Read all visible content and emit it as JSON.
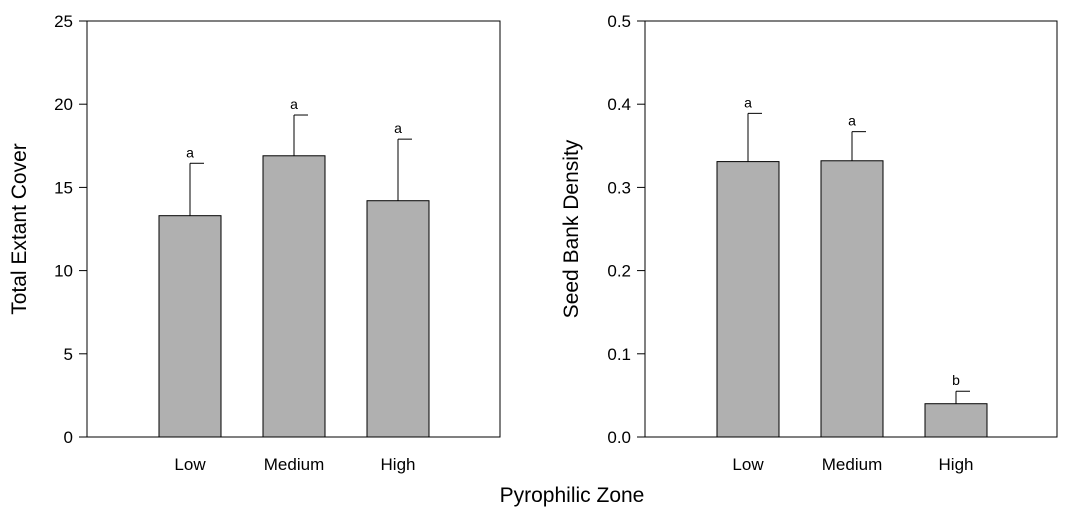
{
  "shared_xlabel": "Pyrophilic Zone",
  "chart_data": [
    {
      "type": "bar",
      "categories": [
        "Low",
        "Medium",
        "High"
      ],
      "values": [
        13.3,
        16.9,
        14.2
      ],
      "errors": [
        3.15,
        2.45,
        3.7
      ],
      "significance": [
        "a",
        "a",
        "a"
      ],
      "xlabel": "",
      "ylabel": "Total Extant Cover",
      "ylim": [
        0,
        25
      ],
      "yticks": [
        0,
        5,
        10,
        15,
        20,
        25
      ],
      "yticklabels": [
        "0",
        "5",
        "10",
        "15",
        "20",
        "25"
      ],
      "bar_color": "#b0b0b0",
      "grid": false
    },
    {
      "type": "bar",
      "categories": [
        "Low",
        "Medium",
        "High"
      ],
      "values": [
        0.331,
        0.332,
        0.04
      ],
      "errors": [
        0.058,
        0.035,
        0.015
      ],
      "significance": [
        "a",
        "a",
        "b"
      ],
      "xlabel": "",
      "ylabel": "Seed Bank Density",
      "ylim": [
        0,
        0.5
      ],
      "yticks": [
        0,
        0.1,
        0.2,
        0.3,
        0.4,
        0.5
      ],
      "yticklabels": [
        "0.0",
        "0.1",
        "0.2",
        "0.3",
        "0.4",
        "0.5"
      ],
      "bar_color": "#b0b0b0",
      "grid": false
    }
  ]
}
